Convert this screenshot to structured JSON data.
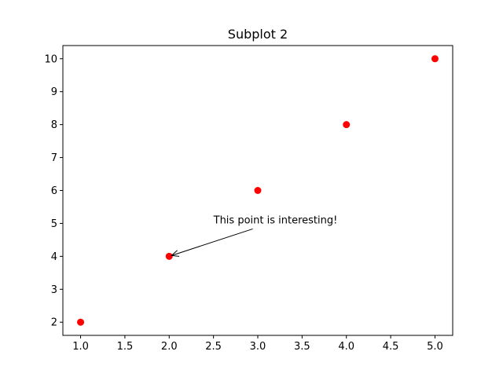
{
  "chart_data": {
    "type": "scatter",
    "title": "Subplot 2",
    "xlabel": "",
    "ylabel": "",
    "xlim": [
      0.8,
      5.2
    ],
    "ylim": [
      1.6,
      10.4
    ],
    "x_ticks": [
      1.0,
      1.5,
      2.0,
      2.5,
      3.0,
      3.5,
      4.0,
      4.5,
      5.0
    ],
    "x_tick_labels": [
      "1.0",
      "1.5",
      "2.0",
      "2.5",
      "3.0",
      "3.5",
      "4.0",
      "4.5",
      "5.0"
    ],
    "y_ticks": [
      2,
      3,
      4,
      5,
      6,
      7,
      8,
      9,
      10
    ],
    "y_tick_labels": [
      "2",
      "3",
      "4",
      "5",
      "6",
      "7",
      "8",
      "9",
      "10"
    ],
    "grid": false,
    "series": [
      {
        "x": [
          1,
          2,
          3,
          4,
          5
        ],
        "y": [
          2,
          4,
          6,
          8,
          10
        ],
        "color": "#ff0000",
        "marker": "circle"
      }
    ],
    "annotations": [
      {
        "text": "This point is interesting!",
        "xy": [
          2,
          4
        ],
        "xytext": [
          2.5,
          5
        ]
      }
    ]
  }
}
